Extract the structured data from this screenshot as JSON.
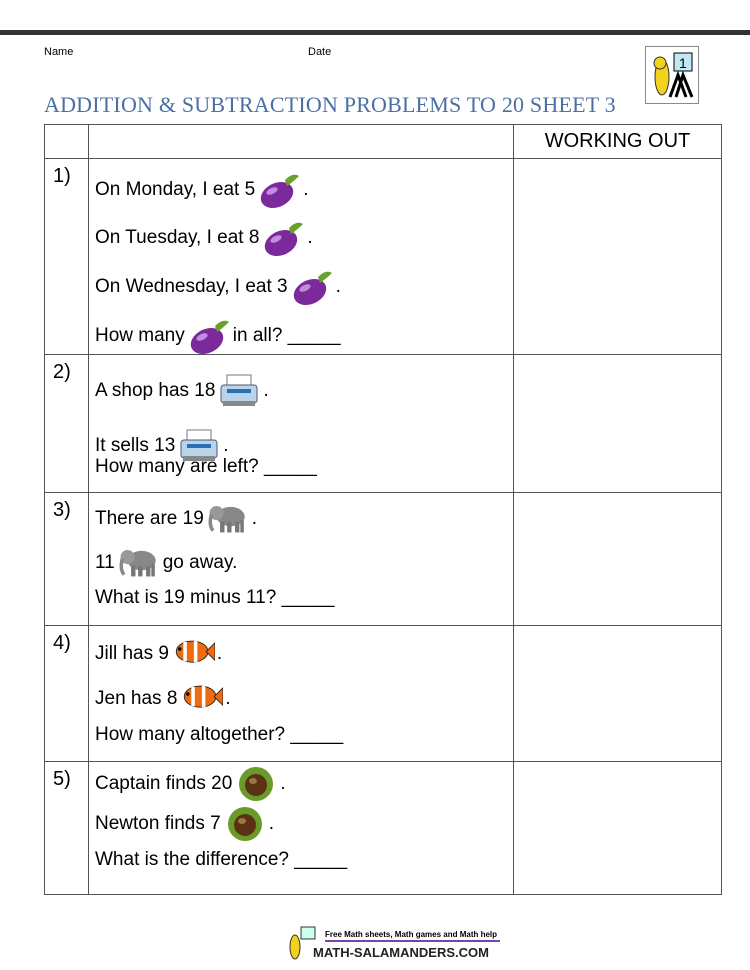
{
  "header": {
    "name_label": "Name",
    "date_label": "Date",
    "title": "ADDITION & SUBTRACTION PROBLEMS TO 20 SHEET 3",
    "logo_number": "1"
  },
  "table": {
    "working_out": "WORKING OUT"
  },
  "problems": [
    {
      "number": "1)",
      "icon": "eggplant-icon",
      "lines": [
        [
          "On Monday, I eat 5",
          "."
        ],
        [
          "On Tuesday, I eat 8",
          "."
        ],
        [
          "On Wednesday, I eat 3",
          "."
        ],
        [
          "How many",
          "in all? _____"
        ]
      ]
    },
    {
      "number": "2)",
      "icon": "printer-icon",
      "lines": [
        [
          "A shop has 18",
          "."
        ],
        [
          "It sells 13",
          "."
        ],
        [
          "How many are left? _____",
          ""
        ]
      ]
    },
    {
      "number": "3)",
      "icon": "elephant-icon",
      "lines": [
        [
          "There are 19",
          "."
        ],
        [
          "11",
          "go away."
        ],
        [
          "What is 19 minus 11? _____",
          ""
        ]
      ]
    },
    {
      "number": "4)",
      "icon": "clownfish-icon",
      "lines": [
        [
          "Jill has 9",
          "."
        ],
        [
          "Jen has 8",
          "."
        ],
        [
          "How many altogether? _____",
          ""
        ]
      ]
    },
    {
      "number": "5)",
      "icon": "chestnut-icon",
      "lines": [
        [
          "Captain finds 20",
          "."
        ],
        [
          "Newton finds 7",
          "."
        ],
        [
          "What is the difference? _____",
          ""
        ]
      ]
    }
  ],
  "footer": {
    "tagline": "Free Math sheets, Math games and Math help",
    "site": "MATH-SALAMANDERS.COM"
  }
}
